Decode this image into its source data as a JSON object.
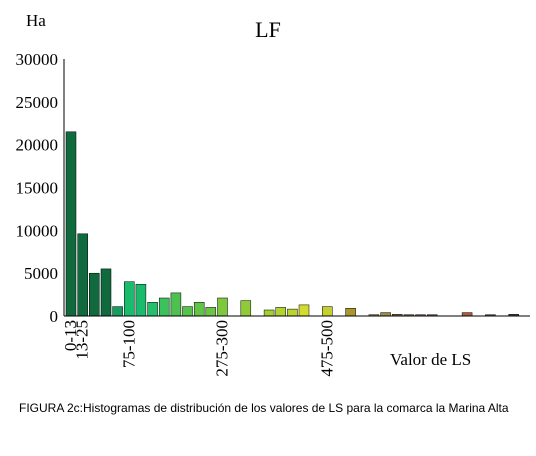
{
  "chart_data": {
    "type": "bar",
    "title": "LF",
    "ylabel": "Ha",
    "xlabel": "Valor de LS",
    "ylim": [
      0,
      30000
    ],
    "yticks": [
      0,
      5000,
      10000,
      15000,
      20000,
      25000,
      30000
    ],
    "x_tick_labels": [
      {
        "label": "0-13",
        "index": 0
      },
      {
        "label": "13-25",
        "index": 1
      },
      {
        "label": "75-100",
        "index": 5
      },
      {
        "label": "275-300",
        "index": 13
      },
      {
        "label": "475-500",
        "index": 22
      }
    ],
    "values": [
      21500,
      9600,
      5000,
      5500,
      1100,
      4000,
      3700,
      1600,
      2100,
      2700,
      1100,
      1600,
      1000,
      2100,
      0,
      1800,
      0,
      700,
      1000,
      800,
      1300,
      0,
      1100,
      0,
      900,
      0,
      150,
      400,
      200,
      150,
      150,
      150,
      0,
      0,
      400,
      0,
      150,
      0,
      200
    ],
    "colors": [
      "#106a3e",
      "#106a3e",
      "#106a3e",
      "#106a3e",
      "#169c5c",
      "#1bbb6e",
      "#1bbb6e",
      "#25be6b",
      "#3cc25d",
      "#4dc04f",
      "#56c24a",
      "#62c446",
      "#6cc544",
      "#7ec83e",
      "#8acb3a",
      "#8fcb38",
      "#98cc36",
      "#a3cf34",
      "#b0d232",
      "#bcd430",
      "#d2dc2a",
      "#c9cf32",
      "#c4cf30",
      "#b8ae38",
      "#a9962e",
      "#9a8838",
      "#8b7e3e",
      "#9c8a46",
      "#8c6f48",
      "#7e6048",
      "#7a5a48",
      "#74544a",
      "#6e4e4a",
      "#6a4a4a",
      "#b05a3a",
      "#704c4c",
      "#6a4848",
      "#604646",
      "#5a4444"
    ]
  },
  "caption": "FIGURA 2c:Histogramas de distribución de los valores de LS para la comarca la Marina Alta"
}
